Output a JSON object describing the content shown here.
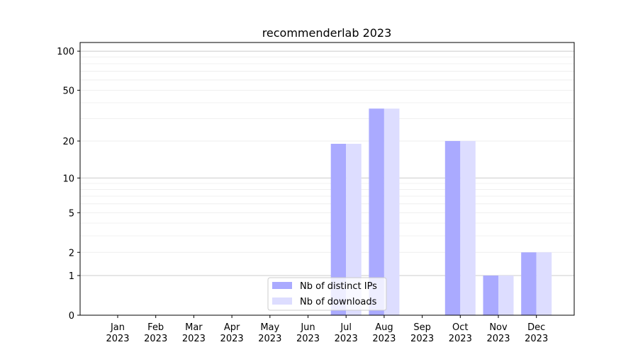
{
  "chart_data": {
    "type": "bar",
    "title": "recommenderlab 2023",
    "xlabel": "",
    "ylabel": "",
    "y_scale": "log(1+y)",
    "ylim": [
      0,
      117
    ],
    "grid": "horizontal major and minor",
    "legend_placement": "bottom-center",
    "categories": [
      "Jan\n2023",
      "Feb\n2023",
      "Mar\n2023",
      "Apr\n2023",
      "May\n2023",
      "Jun\n2023",
      "Jul\n2023",
      "Aug\n2023",
      "Sep\n2023",
      "Oct\n2023",
      "Nov\n2023",
      "Dec\n2023"
    ],
    "y_ticks": [
      0,
      1,
      2,
      5,
      10,
      20,
      50,
      100
    ],
    "series": [
      {
        "name": "Nb of distinct IPs",
        "color": "#aaaaff",
        "values": [
          0,
          0,
          0,
          0,
          0,
          0,
          19,
          36,
          0,
          20,
          1,
          2
        ]
      },
      {
        "name": "Nb of downloads",
        "color": "#ddddff",
        "values": [
          0,
          0,
          0,
          0,
          0,
          0,
          19,
          36,
          0,
          20,
          1,
          2
        ]
      }
    ]
  }
}
